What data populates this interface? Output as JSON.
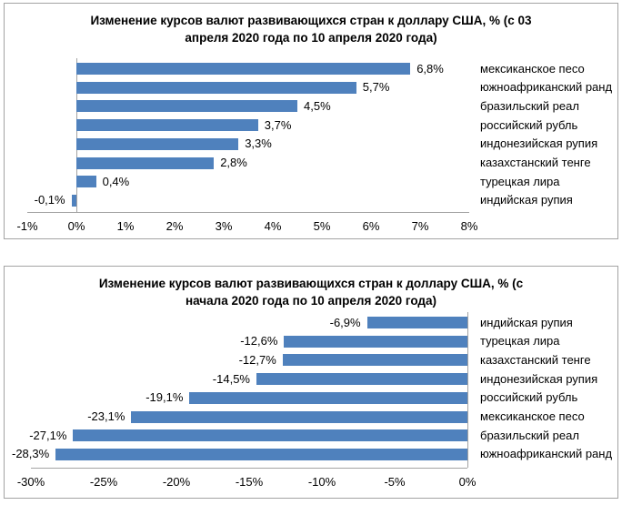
{
  "chart_data": [
    {
      "type": "bar",
      "orientation": "horizontal",
      "title": "Изменение курсов валют развивающихся стран к доллару США, % (с 03 апреля 2020 года по 10 апреля 2020 года)",
      "title_lines": [
        "Изменение курсов валют развивающихся стран к доллару США, % (с 03",
        "апреля 2020 года по 10 апреля 2020 года)"
      ],
      "categories": [
        "мексиканское песо",
        "южноафриканский ранд",
        "бразильский реал",
        "российский рубль",
        "индонезийская рупия",
        "казахстанский тенге",
        "турецкая лира",
        "индийская рупия"
      ],
      "values": [
        6.8,
        5.7,
        4.5,
        3.7,
        3.3,
        2.8,
        0.4,
        -0.1
      ],
      "value_labels": [
        "6,8%",
        "5,7%",
        "4,5%",
        "3,7%",
        "3,3%",
        "2,8%",
        "0,4%",
        "-0,1%"
      ],
      "xlim": [
        -1,
        8
      ],
      "x_tick_values": [
        -1,
        0,
        1,
        2,
        3,
        4,
        5,
        6,
        7,
        8
      ],
      "x_ticks": [
        "-1%",
        "0%",
        "1%",
        "2%",
        "3%",
        "4%",
        "5%",
        "6%",
        "7%",
        "8%"
      ],
      "category_side": "right",
      "legend": "none",
      "grid": false,
      "bar_color": "#4F81BD",
      "axis_color": "#a3a3a3"
    },
    {
      "type": "bar",
      "orientation": "horizontal",
      "title": "Изменение курсов валют развивающихся стран к доллару США, % (с начала 2020 года по 10 апреля 2020 года)",
      "title_lines": [
        "Изменение курсов валют развивающихся стран к доллару США, % (с",
        "начала 2020 года по 10 апреля 2020 года)"
      ],
      "categories": [
        "индийская рупия",
        "турецкая лира",
        "казахстанский тенге",
        "индонезийская рупия",
        "российский рубль",
        "мексиканское песо",
        "бразильский реал",
        "южноафриканский ранд"
      ],
      "values": [
        -6.9,
        -12.6,
        -12.7,
        -14.5,
        -19.1,
        -23.1,
        -27.1,
        -28.3
      ],
      "value_labels": [
        "-6,9%",
        "-12,6%",
        "-12,7%",
        "-14,5%",
        "-19,1%",
        "-23,1%",
        "-27,1%",
        "-28,3%"
      ],
      "xlim": [
        -30,
        0
      ],
      "x_tick_values": [
        -30,
        -25,
        -20,
        -15,
        -10,
        -5,
        0
      ],
      "x_ticks": [
        "-30%",
        "-25%",
        "-20%",
        "-15%",
        "-10%",
        "-5%",
        "0%"
      ],
      "category_side": "right",
      "legend": "none",
      "grid": false,
      "bar_color": "#4F81BD",
      "axis_color": "#a3a3a3"
    }
  ]
}
